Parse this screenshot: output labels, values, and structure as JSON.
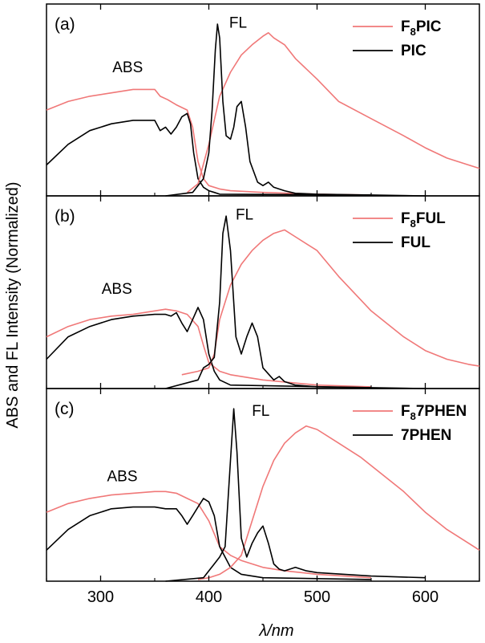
{
  "figure": {
    "ylabel": "ABS and FL Intensity (Normalized)",
    "xlabel": "λ/nm"
  },
  "chart_data": [
    {
      "type": "line",
      "panel_label": "(a)",
      "xlim": [
        250,
        650
      ],
      "ylim": [
        0,
        1.08
      ],
      "x_ticks": [
        300,
        400,
        500,
        600
      ],
      "x_tick_labels": [
        "300",
        "400",
        "500",
        "600"
      ],
      "annotations": [
        {
          "text": "ABS",
          "x": 325,
          "y": 0.72
        },
        {
          "text": "FL",
          "x": 427,
          "y": 0.98
        }
      ],
      "legend": {
        "position": "top-right",
        "entries": [
          {
            "prefix": "F",
            "sub": "8",
            "suffix": "PIC"
          },
          {
            "prefix": "PIC",
            "sub": "",
            "suffix": ""
          }
        ]
      },
      "series": [
        {
          "name": "F8PIC ABS",
          "color": "#f07878",
          "x": [
            250,
            270,
            290,
            310,
            330,
            350,
            355,
            362,
            370,
            380,
            385,
            390,
            395,
            400,
            410,
            420,
            450,
            500,
            550
          ],
          "y": [
            0.5,
            0.55,
            0.58,
            0.6,
            0.62,
            0.62,
            0.58,
            0.56,
            0.53,
            0.5,
            0.4,
            0.2,
            0.1,
            0.06,
            0.04,
            0.03,
            0.02,
            0.01,
            0.005
          ]
        },
        {
          "name": "PIC ABS",
          "color": "#000000",
          "x": [
            250,
            270,
            290,
            310,
            330,
            350,
            355,
            360,
            365,
            370,
            375,
            380,
            383,
            386,
            390,
            395,
            400,
            405,
            410,
            550
          ],
          "y": [
            0.18,
            0.3,
            0.38,
            0.42,
            0.44,
            0.44,
            0.38,
            0.4,
            0.36,
            0.4,
            0.46,
            0.48,
            0.42,
            0.25,
            0.1,
            0.05,
            0.03,
            0.02,
            0.01,
            0.005
          ]
        },
        {
          "name": "F8PIC FL",
          "color": "#f07878",
          "x": [
            380,
            390,
            400,
            410,
            420,
            430,
            440,
            450,
            455,
            460,
            470,
            480,
            500,
            520,
            550,
            580,
            600,
            620,
            640,
            650
          ],
          "y": [
            0.02,
            0.07,
            0.3,
            0.58,
            0.72,
            0.82,
            0.88,
            0.93,
            0.95,
            0.92,
            0.88,
            0.8,
            0.68,
            0.55,
            0.45,
            0.35,
            0.28,
            0.22,
            0.18,
            0.16
          ]
        },
        {
          "name": "PIC FL",
          "color": "#000000",
          "x": [
            360,
            385,
            390,
            395,
            400,
            403,
            406,
            408,
            410,
            413,
            416,
            420,
            423,
            426,
            430,
            434,
            438,
            445,
            450,
            455,
            460,
            470,
            480,
            500,
            550,
            600
          ],
          "y": [
            0,
            0.02,
            0.06,
            0.1,
            0.25,
            0.5,
            0.85,
            1.0,
            0.92,
            0.55,
            0.35,
            0.33,
            0.4,
            0.52,
            0.55,
            0.4,
            0.2,
            0.08,
            0.06,
            0.08,
            0.05,
            0.03,
            0.015,
            0.01,
            0.005,
            0
          ]
        },
        {
          "name": "baseline",
          "color": "#8a8ad6",
          "dashed": true,
          "x": [
            250,
            650
          ],
          "y": [
            0,
            0
          ]
        }
      ]
    },
    {
      "type": "line",
      "panel_label": "(b)",
      "xlim": [
        250,
        650
      ],
      "ylim": [
        0,
        1.08
      ],
      "x_ticks": [
        300,
        400,
        500,
        600
      ],
      "x_tick_labels": [
        "300",
        "400",
        "500",
        "600"
      ],
      "annotations": [
        {
          "text": "ABS",
          "x": 315,
          "y": 0.55
        },
        {
          "text": "FL",
          "x": 433,
          "y": 0.98
        }
      ],
      "legend": {
        "position": "top-right",
        "entries": [
          {
            "prefix": "F",
            "sub": "8",
            "suffix": "FUL"
          },
          {
            "prefix": "FUL",
            "sub": "",
            "suffix": ""
          }
        ]
      },
      "series": [
        {
          "name": "F8FUL ABS",
          "color": "#f07878",
          "x": [
            250,
            270,
            290,
            310,
            330,
            350,
            360,
            370,
            380,
            390,
            395,
            400,
            410,
            420,
            450,
            500,
            550
          ],
          "y": [
            0.3,
            0.36,
            0.4,
            0.42,
            0.43,
            0.45,
            0.46,
            0.45,
            0.43,
            0.36,
            0.25,
            0.15,
            0.1,
            0.08,
            0.05,
            0.02,
            0.01
          ]
        },
        {
          "name": "FUL ABS",
          "color": "#000000",
          "x": [
            250,
            270,
            290,
            310,
            330,
            350,
            360,
            365,
            370,
            375,
            380,
            385,
            390,
            395,
            400,
            405,
            410,
            420,
            550
          ],
          "y": [
            0.17,
            0.3,
            0.36,
            0.4,
            0.42,
            0.43,
            0.43,
            0.42,
            0.44,
            0.38,
            0.33,
            0.4,
            0.47,
            0.4,
            0.2,
            0.1,
            0.05,
            0.02,
            0.005
          ]
        },
        {
          "name": "F8FUL FL",
          "color": "#f07878",
          "x": [
            375,
            390,
            400,
            405,
            410,
            420,
            430,
            440,
            450,
            460,
            470,
            480,
            500,
            520,
            550,
            580,
            600,
            620,
            640,
            650
          ],
          "y": [
            0.08,
            0.1,
            0.12,
            0.2,
            0.4,
            0.6,
            0.72,
            0.8,
            0.86,
            0.9,
            0.92,
            0.88,
            0.8,
            0.65,
            0.45,
            0.3,
            0.22,
            0.17,
            0.14,
            0.13
          ]
        },
        {
          "name": "FUL FL",
          "color": "#000000",
          "x": [
            360,
            390,
            395,
            400,
            405,
            410,
            413,
            416,
            420,
            425,
            430,
            435,
            440,
            445,
            450,
            460,
            465,
            470,
            480,
            500,
            550,
            600
          ],
          "y": [
            0,
            0.05,
            0.12,
            0.14,
            0.18,
            0.5,
            0.9,
            1.0,
            0.8,
            0.3,
            0.2,
            0.3,
            0.38,
            0.3,
            0.12,
            0.05,
            0.07,
            0.04,
            0.02,
            0.01,
            0.005,
            0
          ]
        },
        {
          "name": "baseline",
          "color": "#8a8ad6",
          "dashed": true,
          "x": [
            250,
            650
          ],
          "y": [
            0,
            0
          ]
        }
      ]
    },
    {
      "type": "line",
      "panel_label": "(c)",
      "xlim": [
        250,
        650
      ],
      "ylim": [
        0,
        1.08
      ],
      "x_ticks": [
        300,
        400,
        500,
        600
      ],
      "x_tick_labels": [
        "300",
        "400",
        "500",
        "600"
      ],
      "annotations": [
        {
          "text": "ABS",
          "x": 320,
          "y": 0.58
        },
        {
          "text": "FL",
          "x": 448,
          "y": 0.96
        }
      ],
      "legend": {
        "position": "top-right",
        "entries": [
          {
            "prefix": "F",
            "sub": "8",
            "suffix": "7PHEN"
          },
          {
            "prefix": "7PHEN",
            "sub": "",
            "suffix": ""
          }
        ]
      },
      "series": [
        {
          "name": "F87PHEN ABS",
          "color": "#f07878",
          "x": [
            250,
            270,
            290,
            310,
            330,
            350,
            360,
            370,
            380,
            390,
            400,
            410,
            420,
            430,
            450,
            470,
            500,
            550
          ],
          "y": [
            0.4,
            0.45,
            0.48,
            0.5,
            0.51,
            0.52,
            0.52,
            0.51,
            0.48,
            0.45,
            0.35,
            0.2,
            0.15,
            0.12,
            0.08,
            0.06,
            0.04,
            0.02
          ]
        },
        {
          "name": "7PHEN ABS",
          "color": "#000000",
          "x": [
            250,
            270,
            290,
            310,
            330,
            350,
            360,
            370,
            375,
            380,
            385,
            390,
            395,
            400,
            405,
            410,
            420,
            430,
            450,
            550
          ],
          "y": [
            0.18,
            0.3,
            0.38,
            0.42,
            0.43,
            0.43,
            0.42,
            0.42,
            0.38,
            0.33,
            0.38,
            0.43,
            0.48,
            0.46,
            0.38,
            0.2,
            0.08,
            0.04,
            0.02,
            0.01
          ]
        },
        {
          "name": "F87PHEN FL",
          "color": "#f07878",
          "x": [
            390,
            400,
            410,
            420,
            430,
            440,
            450,
            460,
            470,
            480,
            490,
            500,
            520,
            540,
            560,
            580,
            600,
            620,
            640,
            650
          ],
          "y": [
            0.01,
            0.02,
            0.04,
            0.08,
            0.15,
            0.35,
            0.55,
            0.7,
            0.8,
            0.86,
            0.9,
            0.88,
            0.8,
            0.72,
            0.62,
            0.52,
            0.4,
            0.3,
            0.22,
            0.18
          ]
        },
        {
          "name": "7PHEN FL",
          "color": "#000000",
          "x": [
            360,
            395,
            400,
            405,
            410,
            415,
            420,
            423,
            426,
            430,
            435,
            440,
            445,
            450,
            455,
            460,
            465,
            470,
            480,
            490,
            500,
            550,
            600
          ],
          "y": [
            0,
            0.02,
            0.06,
            0.1,
            0.14,
            0.2,
            0.7,
            1.0,
            0.75,
            0.25,
            0.14,
            0.22,
            0.28,
            0.32,
            0.22,
            0.1,
            0.07,
            0.06,
            0.08,
            0.06,
            0.05,
            0.03,
            0.02
          ]
        }
      ]
    }
  ]
}
